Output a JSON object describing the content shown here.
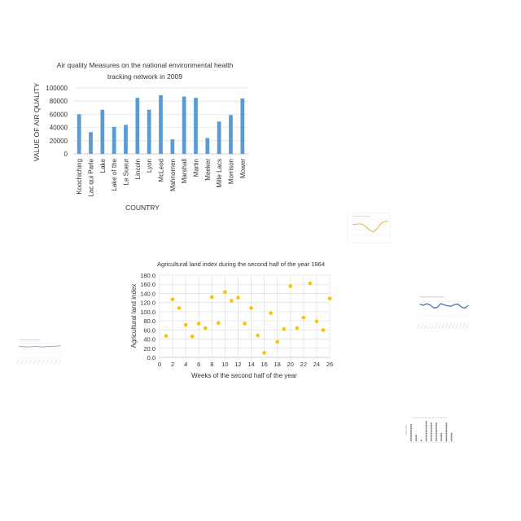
{
  "chart_data": [
    {
      "type": "bar",
      "title_lines": [
        "Air quality Measures on the national environmental health",
        "tracking network in 2009"
      ],
      "xlabel": "COUNTRY",
      "ylabel": "VALUE OF  AIR QUALITY",
      "ylim": [
        0,
        100000
      ],
      "yticks": [
        "0",
        "20000",
        "40000",
        "60000",
        "80000",
        "100000"
      ],
      "grid": true,
      "color": "#5b9bd5",
      "categories": [
        "Koochiching",
        "Lac qui Parle",
        "Lake",
        "Lake of the",
        "Le Sueur",
        "Lincoln",
        "Lyon",
        "McLeod",
        "Mahnomen",
        "Marshall",
        "Martin",
        "Meeker",
        "Mille Lacs",
        "Morrison",
        "Mower"
      ],
      "values": [
        60000,
        33000,
        67000,
        41000,
        44000,
        85000,
        67000,
        89000,
        22000,
        87000,
        85000,
        24000,
        49000,
        59000,
        84000
      ]
    },
    {
      "type": "scatter",
      "title": "Agricultural land index during the second half of the year 1964",
      "xlabel": "Weeks of the second half of the year",
      "ylabel": "Agricultural land index",
      "xlim": [
        0,
        26
      ],
      "ylim": [
        0,
        180
      ],
      "xticks": [
        "0",
        "2",
        "4",
        "6",
        "8",
        "10",
        "12",
        "14",
        "16",
        "18",
        "20",
        "22",
        "24",
        "26"
      ],
      "yticks": [
        "0.0",
        "20.0",
        "40.0",
        "60.0",
        "80.0",
        "100.0",
        "120.0",
        "140.0",
        "160.0",
        "180.0"
      ],
      "grid": true,
      "color": "#ffc000",
      "points": [
        [
          1,
          47
        ],
        [
          2,
          127
        ],
        [
          3,
          108
        ],
        [
          4,
          71
        ],
        [
          5,
          46
        ],
        [
          6,
          74
        ],
        [
          7,
          64
        ],
        [
          8,
          132
        ],
        [
          9,
          75
        ],
        [
          10,
          143
        ],
        [
          11,
          124
        ],
        [
          12,
          131
        ],
        [
          13,
          74
        ],
        [
          14,
          108
        ],
        [
          15,
          48
        ],
        [
          16,
          10
        ],
        [
          17,
          97
        ],
        [
          18,
          34
        ],
        [
          19,
          62
        ],
        [
          20,
          156
        ],
        [
          21,
          64
        ],
        [
          22,
          87
        ],
        [
          23,
          162
        ],
        [
          24,
          79
        ],
        [
          25,
          60
        ],
        [
          26,
          129
        ]
      ]
    },
    {
      "type": "line",
      "color": "#f0b030",
      "values": [
        70,
        72,
        75,
        68,
        50,
        30,
        22,
        45,
        75,
        88,
        90
      ]
    },
    {
      "type": "line",
      "color": "#4472c4",
      "values": [
        88,
        82,
        90,
        84,
        70,
        72,
        90,
        85,
        80,
        78,
        86,
        88,
        74,
        69,
        82
      ]
    },
    {
      "type": "line",
      "color": "#7aa6dc",
      "values": [
        78,
        76,
        74,
        76,
        79,
        75,
        74,
        78,
        77,
        80,
        82
      ]
    },
    {
      "type": "bar",
      "color": "#7f7f7f",
      "values": [
        10,
        4,
        1,
        12,
        11,
        11,
        5,
        11,
        5
      ]
    }
  ]
}
